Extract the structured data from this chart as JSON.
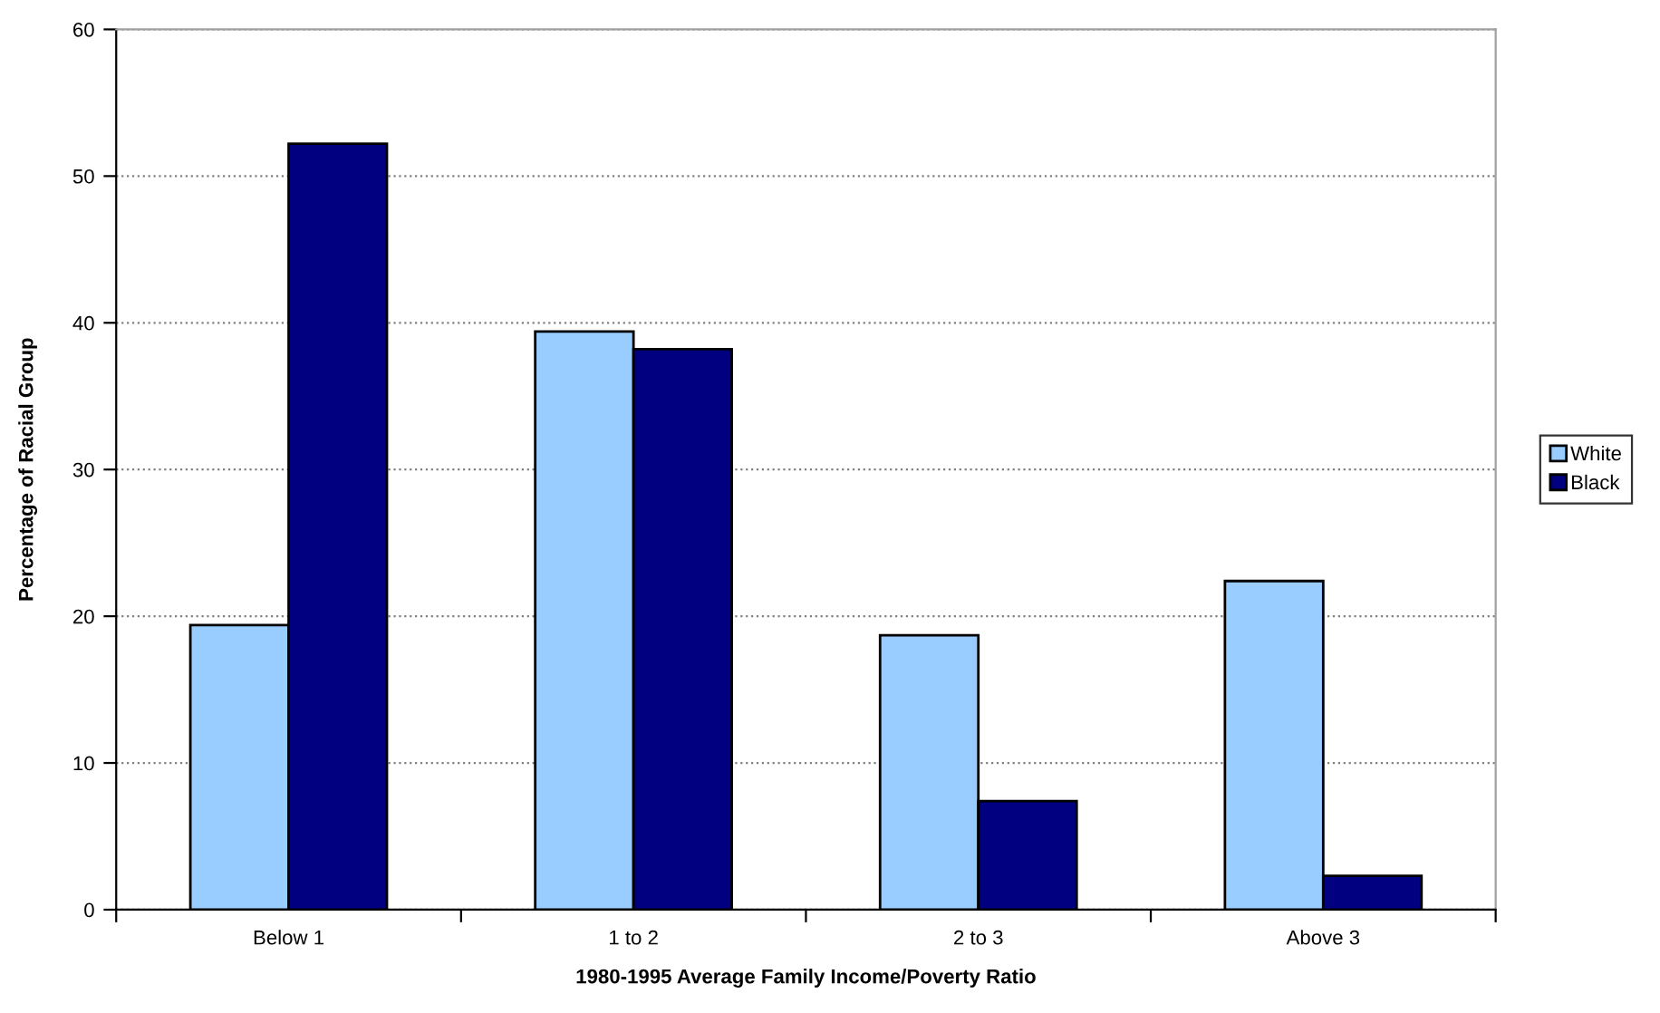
{
  "chart_data": {
    "type": "bar",
    "xlabel": "1980-1995 Average Family Income/Poverty Ratio",
    "ylabel": "Percentage of Racial Group",
    "categories": [
      "Below 1",
      "1 to 2",
      "2 to 3",
      "Above 3"
    ],
    "series": [
      {
        "name": "White",
        "color": "#99ccff",
        "values": [
          19.4,
          39.4,
          18.7,
          22.4
        ]
      },
      {
        "name": "Black",
        "color": "#000080",
        "values": [
          52.2,
          38.2,
          7.4,
          2.3
        ]
      }
    ],
    "ylim": [
      0,
      60
    ],
    "yticks": [
      0,
      10,
      20,
      30,
      40,
      50,
      60
    ],
    "grid": "y",
    "legend": "right"
  }
}
